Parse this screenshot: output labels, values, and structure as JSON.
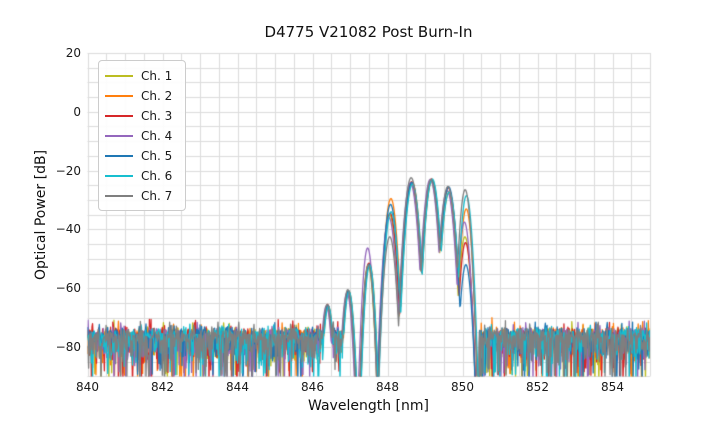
{
  "chart_data": {
    "type": "line",
    "title": "D4775 V21082 Post Burn-In",
    "xlabel": "Wavelength [nm]",
    "ylabel": "Optical Power [dB]",
    "xlim": [
      840,
      855
    ],
    "ylim": [
      -90,
      20
    ],
    "xticks": [
      840,
      842,
      844,
      846,
      848,
      850,
      852,
      854
    ],
    "xtick_labels": [
      "840",
      "842",
      "844",
      "846",
      "848",
      "850",
      "852",
      "854"
    ],
    "yticks": [
      20,
      0,
      -20,
      -40,
      -60,
      -80
    ],
    "ytick_labels": [
      "20",
      "0",
      "−20",
      "−40",
      "−60",
      "−80"
    ],
    "grid": {
      "color": "#dcdcdc",
      "x_step_nm": 0.5,
      "y_step_db": 5
    },
    "legend_position": "upper-left",
    "line_width": 1.3,
    "description": "Optical spectra of 7 channels: noise floor near -76 dB outside the band; in-band lobed filter response between ~846.3 and ~850.4 nm peaking near -23 dB around 848.6-849.2 nm.",
    "lobes": {
      "centers_nm": [
        846.4,
        846.95,
        847.5,
        848.07,
        848.64,
        849.17,
        849.62,
        850.08
      ],
      "half_width_nm": 0.27,
      "notch_depths_db": [
        55,
        55,
        57,
        40,
        33,
        33,
        33,
        48
      ]
    },
    "noise": {
      "floor_db": -76.0,
      "jitter_db": 3.0,
      "deep_spike_prob": 0.13,
      "deep_spike_min_db": 4,
      "deep_spike_range_db": 13,
      "mid_spike_prob": 0.22,
      "up_spike_prob": 0.05,
      "band_start_nm": 846.95,
      "band_end_nm": 850.45
    },
    "series": [
      {
        "name": "Ch. 1",
        "color": "#bcbd22",
        "shift_nm": -0.015,
        "lobe_peaks_db": [
          -66.5,
          -61.5,
          -52.0,
          -35.0,
          -24.5,
          -23.5,
          -27.0,
          -42.5
        ]
      },
      {
        "name": "Ch. 2",
        "color": "#ff7f0e",
        "shift_nm": 0.02,
        "lobe_peaks_db": [
          -66.0,
          -61.0,
          -51.5,
          -29.5,
          -24.0,
          -23.2,
          -27.5,
          -33.0
        ]
      },
      {
        "name": "Ch. 3",
        "color": "#d62728",
        "shift_nm": 0.0,
        "lobe_peaks_db": [
          -65.5,
          -61.0,
          -51.5,
          -34.5,
          -23.8,
          -22.8,
          -25.8,
          -44.5
        ]
      },
      {
        "name": "Ch. 4",
        "color": "#9467bd",
        "shift_nm": -0.03,
        "lobe_peaks_db": [
          -66.0,
          -61.5,
          -46.3,
          -36.0,
          -24.2,
          -23.0,
          -26.8,
          -37.5
        ]
      },
      {
        "name": "Ch. 5",
        "color": "#1f77b4",
        "shift_nm": 0.01,
        "lobe_peaks_db": [
          -65.8,
          -60.8,
          -51.8,
          -31.5,
          -24.0,
          -23.3,
          -25.5,
          -52.0
        ]
      },
      {
        "name": "Ch. 6",
        "color": "#17becf",
        "shift_nm": 0.025,
        "lobe_peaks_db": [
          -66.2,
          -61.2,
          -52.2,
          -34.0,
          -24.6,
          -22.9,
          -27.3,
          -28.5
        ]
      },
      {
        "name": "Ch. 7",
        "color": "#7f7f7f",
        "shift_nm": -0.01,
        "lobe_peaks_db": [
          -65.5,
          -60.5,
          -52.0,
          -42.5,
          -22.4,
          -23.0,
          -25.4,
          -26.5
        ]
      }
    ]
  }
}
